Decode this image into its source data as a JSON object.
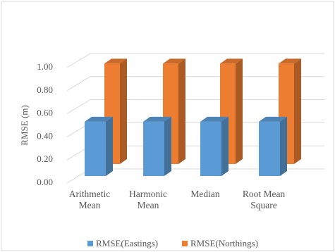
{
  "chart_data": {
    "type": "bar",
    "y_label": "RMSE (m)",
    "categories": [
      "Arithmetic Mean",
      "Harmonic Mean",
      "Median",
      "Root Mean Square"
    ],
    "series": [
      {
        "name": "RMSE(Eastings)",
        "color": "#5b9bd5",
        "values": [
          0.47,
          0.47,
          0.47,
          0.47
        ]
      },
      {
        "name": "RMSE(Northings)",
        "color": "#ed7d31",
        "values": [
          0.87,
          0.87,
          0.87,
          0.87
        ]
      }
    ],
    "ylim": [
      0,
      1
    ],
    "yticks": [
      {
        "value": 0,
        "label": "0.00"
      },
      {
        "value": 0.2,
        "label": "0.20"
      },
      {
        "value": 0.4,
        "label": "0.40"
      },
      {
        "value": 0.6,
        "label": "0.60"
      },
      {
        "value": 0.8,
        "label": "0.80"
      },
      {
        "value": 1,
        "label": "1.00"
      }
    ],
    "grid": true
  }
}
